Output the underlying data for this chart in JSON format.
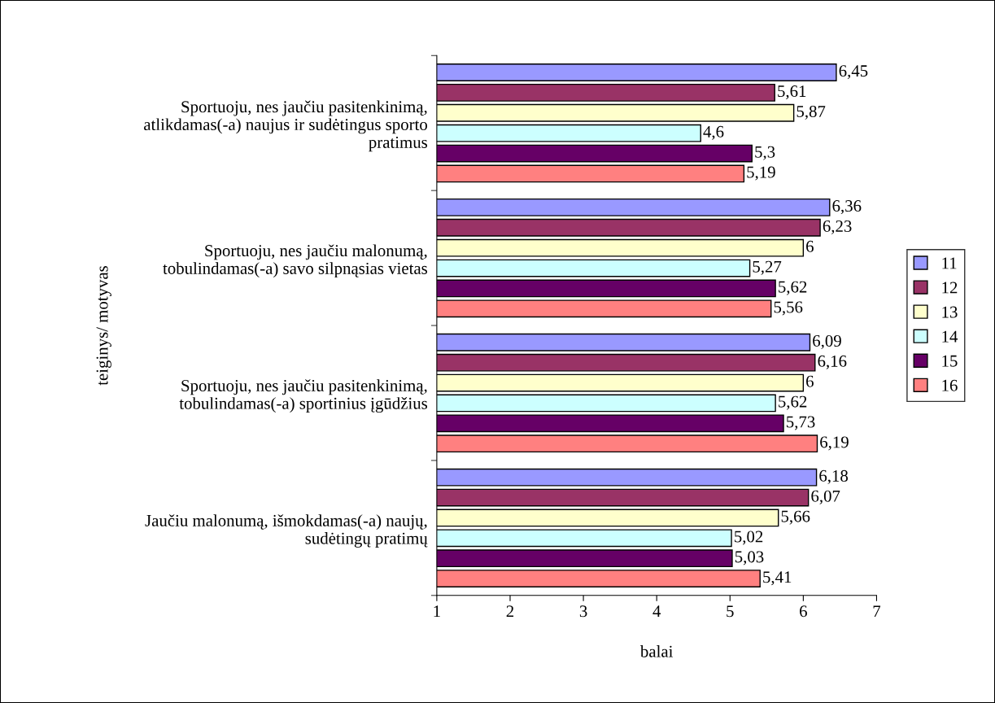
{
  "chart_data": {
    "type": "bar",
    "orientation": "horizontal",
    "xlabel": "balai",
    "ylabel": "teiginys/ motyvas",
    "categories": [
      "Sportuoju, nes jaučiu pasitenkinimą, atlikdamas(-a) naujus ir sudėtingus sporto pratimus",
      "Sportuoju, nes jaučiu malonumą, tobulindamas(-a) savo silpnąsias vietas",
      "Sportuoju, nes jaučiu pasitenkinimą, tobulindamas(-a) sportinius įgūdžius",
      "Jaučiu malonumą, išmokdamas(-a) naujų, sudėtingų pratimų"
    ],
    "series": [
      {
        "name": "11",
        "color": "#9999ff",
        "values": [
          6.45,
          6.36,
          6.09,
          6.18
        ],
        "value_labels": [
          "6,45",
          "6,36",
          "6,09",
          "6,18"
        ]
      },
      {
        "name": "12",
        "color": "#993366",
        "values": [
          5.61,
          6.23,
          6.16,
          6.07
        ],
        "value_labels": [
          "5,61",
          "6,23",
          "6,16",
          "6,07"
        ]
      },
      {
        "name": "13",
        "color": "#ffffcc",
        "values": [
          5.87,
          6,
          6,
          5.66
        ],
        "value_labels": [
          "5,87",
          "6",
          "6",
          "5,66"
        ]
      },
      {
        "name": "14",
        "color": "#ccffff",
        "values": [
          4.6,
          5.27,
          5.62,
          5.02
        ],
        "value_labels": [
          "4,6",
          "5,27",
          "5,62",
          "5,02"
        ]
      },
      {
        "name": "15",
        "color": "#660066",
        "values": [
          5.3,
          5.62,
          5.73,
          5.03
        ],
        "value_labels": [
          "5,3",
          "5,62",
          "5,73",
          "5,03"
        ]
      },
      {
        "name": "16",
        "color": "#ff8080",
        "values": [
          5.19,
          5.56,
          6.19,
          5.41
        ],
        "value_labels": [
          "5,19",
          "5,56",
          "6,19",
          "5,41"
        ]
      }
    ],
    "xlim": [
      1,
      7
    ],
    "xticks": [
      1,
      2,
      3,
      4,
      5,
      6,
      7
    ],
    "grid": false,
    "legend": "right"
  }
}
